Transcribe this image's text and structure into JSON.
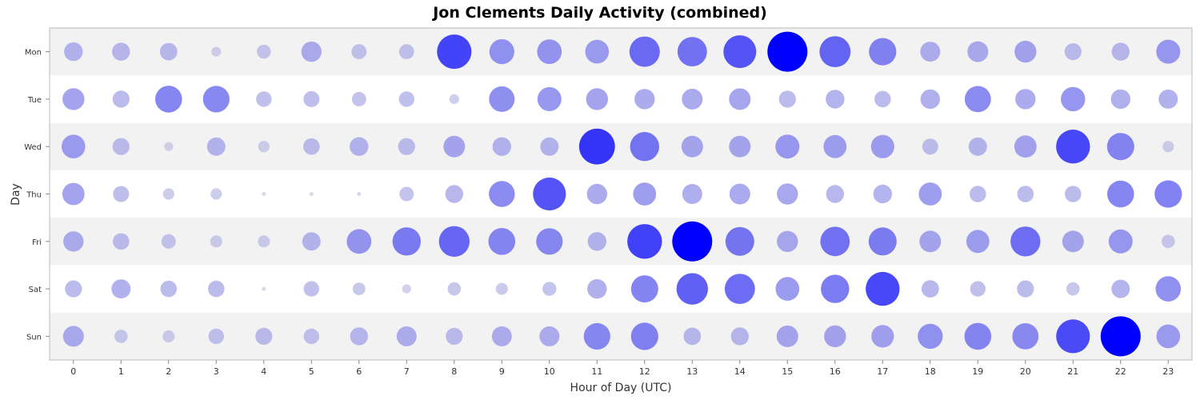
{
  "chart_data": {
    "type": "scatter",
    "title": "Jon Clements Daily Activity (combined)",
    "xlabel": "Hour of Day (UTC)",
    "ylabel": "Day",
    "x": [
      0,
      1,
      2,
      3,
      4,
      5,
      6,
      7,
      8,
      9,
      10,
      11,
      12,
      13,
      14,
      15,
      16,
      17,
      18,
      19,
      20,
      21,
      22,
      23
    ],
    "days": [
      "Mon",
      "Tue",
      "Wed",
      "Thu",
      "Fri",
      "Sat",
      "Sun"
    ],
    "xlim": [
      -0.5,
      23.5
    ],
    "grid": true,
    "legend": "none",
    "max_value": 100,
    "values": {
      "Mon": [
        22,
        20,
        19,
        6,
        12,
        26,
        14,
        14,
        74,
        39,
        38,
        35,
        58,
        54,
        67,
        100,
        60,
        47,
        25,
        27,
        30,
        18,
        20,
        36
      ],
      "Tue": [
        30,
        18,
        45,
        44,
        15,
        16,
        13,
        15,
        6,
        41,
        36,
        30,
        26,
        27,
        29,
        18,
        22,
        17,
        24,
        43,
        26,
        37,
        24,
        23
      ],
      "Wed": [
        35,
        18,
        5,
        21,
        8,
        17,
        22,
        18,
        29,
        22,
        21,
        80,
        53,
        29,
        29,
        36,
        33,
        34,
        16,
        21,
        31,
        72,
        46,
        8
      ],
      "Thu": [
        31,
        16,
        8,
        8,
        1,
        1,
        1,
        13,
        20,
        42,
        68,
        26,
        33,
        25,
        27,
        28,
        20,
        22,
        33,
        17,
        17,
        17,
        45,
        47
      ],
      "Fri": [
        26,
        17,
        13,
        9,
        9,
        21,
        38,
        50,
        59,
        45,
        44,
        22,
        75,
        100,
        52,
        28,
        54,
        49,
        29,
        33,
        56,
        29,
        36,
        11
      ],
      "Sat": [
        18,
        23,
        17,
        17,
        1,
        15,
        10,
        5,
        11,
        9,
        12,
        24,
        46,
        62,
        57,
        35,
        50,
        72,
        19,
        15,
        18,
        11,
        21,
        40
      ],
      "Sun": [
        27,
        11,
        9,
        15,
        18,
        15,
        20,
        25,
        18,
        25,
        25,
        44,
        47,
        19,
        20,
        29,
        30,
        32,
        39,
        45,
        43,
        71,
        100,
        35
      ]
    }
  }
}
